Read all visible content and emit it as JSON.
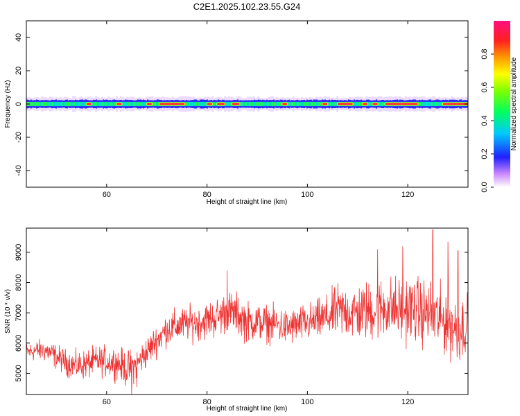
{
  "chart_data": [
    {
      "type": "heatmap",
      "title": "C2E1.2025.102.23.55.G24",
      "xlabel": "Height of straight line (km)",
      "ylabel": "Frequency (Hz)",
      "xlim": [
        44,
        132
      ],
      "ylim": [
        -50,
        50
      ],
      "xticks": [
        60,
        80,
        100,
        120
      ],
      "yticks": [
        40,
        20,
        0,
        -20,
        -40
      ],
      "colorbar": {
        "label": "Normalized spectral amplitude",
        "range": [
          0,
          1
        ],
        "ticks": [
          0.0,
          0.2,
          0.4,
          0.6,
          0.8
        ],
        "colormap": "rainbow (violet→blue→cyan→green→yellow→orange→red→magenta)"
      },
      "band": {
        "center_frequency_hz": 0,
        "core_halfwidth_hz": 1.5,
        "envelope_halfwidth_hz": 3.5,
        "peak_segments_km": [
          [
            56,
            57
          ],
          [
            62,
            63
          ],
          [
            68,
            69
          ],
          [
            70.5,
            75.5
          ],
          [
            80,
            81
          ],
          [
            82,
            83.5
          ],
          [
            85,
            86.5
          ],
          [
            95,
            96
          ],
          [
            103,
            104
          ],
          [
            106,
            109
          ],
          [
            111,
            112
          ],
          [
            113,
            114
          ],
          [
            115.5,
            122
          ],
          [
            127,
            132
          ]
        ]
      }
    },
    {
      "type": "line",
      "xlabel": "Height of straight line (km)",
      "ylabel": "SNR (10 * v/v)",
      "xlim": [
        44,
        132
      ],
      "ylim": [
        4300,
        9800
      ],
      "xticks": [
        60,
        80,
        100,
        120
      ],
      "yticks": [
        5000,
        6000,
        7000,
        8000,
        9000
      ],
      "color": "#ee3333",
      "x": [
        44,
        46,
        48,
        50,
        52,
        54,
        56,
        58,
        60,
        62,
        64,
        66,
        68,
        70,
        72,
        74,
        76,
        78,
        80,
        82,
        84,
        86,
        88,
        90,
        92,
        94,
        96,
        98,
        100,
        102,
        104,
        106,
        108,
        110,
        112,
        114,
        116,
        118,
        120,
        122,
        124,
        126,
        128,
        130,
        132
      ],
      "mean": [
        5700,
        5750,
        5750,
        5550,
        5350,
        5250,
        5300,
        5400,
        5400,
        5350,
        5150,
        5300,
        5700,
        6100,
        6450,
        6550,
        6650,
        6650,
        6750,
        6850,
        7050,
        6950,
        6700,
        6700,
        6650,
        6600,
        6500,
        6600,
        6650,
        6750,
        6850,
        7050,
        7050,
        7000,
        7050,
        7100,
        7200,
        7100,
        7150,
        7050,
        7000,
        6800,
        6700,
        6400,
        6700
      ],
      "amplitude": [
        220,
        240,
        260,
        280,
        300,
        320,
        340,
        340,
        360,
        360,
        420,
        360,
        360,
        360,
        380,
        400,
        400,
        400,
        420,
        460,
        480,
        480,
        460,
        440,
        420,
        420,
        420,
        420,
        440,
        460,
        520,
        600,
        640,
        660,
        680,
        700,
        720,
        740,
        760,
        760,
        760,
        760,
        780,
        760,
        700
      ],
      "highlights": [
        [
          84,
          8400
        ],
        [
          114,
          9100
        ],
        [
          119,
          9200
        ],
        [
          125,
          9750
        ],
        [
          128,
          9350
        ],
        [
          130,
          9050
        ],
        [
          65,
          4300
        ],
        [
          66,
          4550
        ]
      ]
    }
  ]
}
